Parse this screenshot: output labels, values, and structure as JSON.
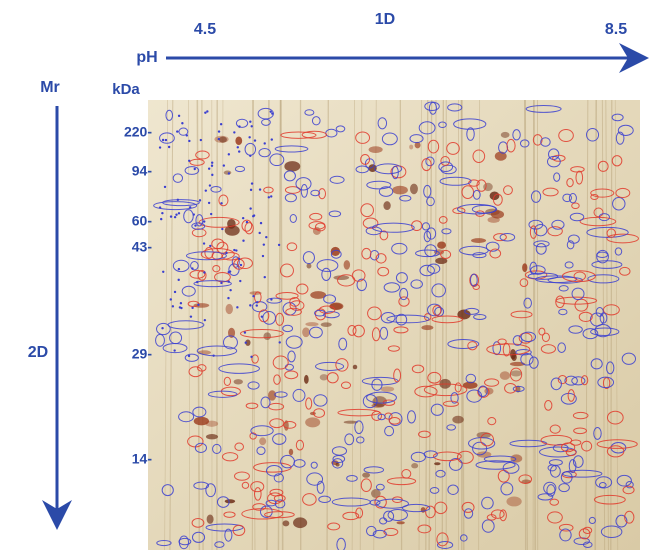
{
  "header": {
    "first_dimension": {
      "name": "1D",
      "unit": "pH",
      "low": "4.5",
      "high": "8.5"
    },
    "second_dimension": {
      "name": "2D",
      "symbol": "Mr",
      "unit": "kDa",
      "labels": [
        "220-",
        "94-",
        "60-",
        "43-",
        "29-",
        "14-"
      ]
    }
  }
}
